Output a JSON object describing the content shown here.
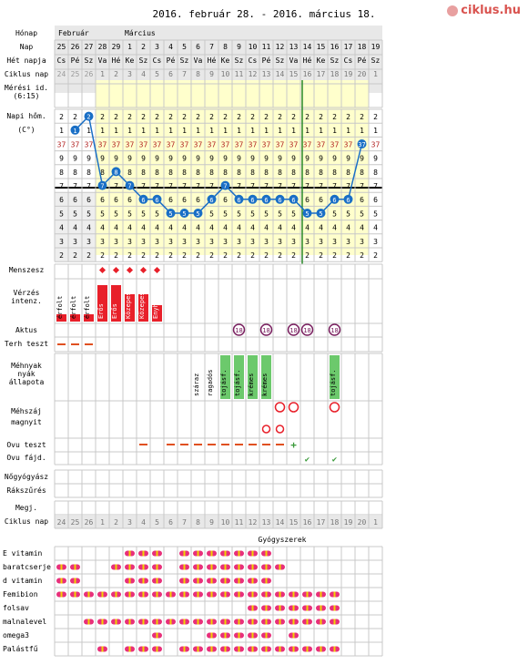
{
  "header": {
    "title": "2016. február 28. - 2016. március 18.",
    "logo": "ciklus.hu"
  },
  "months": {
    "feb": "Február",
    "mar": "Március"
  },
  "labels": {
    "month": "Hónap",
    "day": "Nap",
    "weekday": "Hét napja",
    "cycle_day": "Ciklus nap",
    "measure_time": "Mérési id. (6:15)",
    "temp": "Napi hőm. (C°)",
    "menses": "Menszesz",
    "bleeding": "Vérzés intenz.",
    "sex": "Aktus",
    "preg_test": "Terh teszt",
    "mucus": "Méhnyak nyák állapota",
    "cervix": "Méhszáj magnyit",
    "ovu_test": "Ovu teszt",
    "ovu_pain": "Ovu fájd.",
    "gyno": "Nőgyógyász",
    "rash": "Rákszűrés",
    "note": "Megj.",
    "cycle_day2": "Ciklus nap",
    "meds_title": "Gyógyszerek"
  },
  "days": [
    25,
    26,
    27,
    28,
    29,
    1,
    2,
    3,
    4,
    5,
    6,
    7,
    8,
    9,
    10,
    11,
    12,
    13,
    14,
    15,
    16,
    17,
    18,
    19
  ],
  "weekdays": [
    "Cs",
    "Pé",
    "Sz",
    "Va",
    "Hé",
    "Ke",
    "Sz",
    "Cs",
    "Pé",
    "Sz",
    "Va",
    "Hé",
    "Ke",
    "Sz",
    "Cs",
    "Pé",
    "Sz",
    "Va",
    "Hé",
    "Ke",
    "Sz",
    "Cs",
    "Pé",
    "Sz"
  ],
  "cycle_days": [
    24,
    25,
    26,
    1,
    2,
    3,
    4,
    5,
    6,
    7,
    8,
    9,
    10,
    11,
    12,
    13,
    14,
    15,
    16,
    17,
    18,
    19,
    20,
    1
  ],
  "temp_rows": [
    "2",
    "1",
    "37",
    "9",
    "8",
    "7",
    "6",
    "5",
    "4",
    "3",
    "2"
  ],
  "temp_values": [
    37.1,
    37.2,
    36.7,
    36.8,
    36.7,
    36.6,
    36.6,
    36.5,
    36.5,
    36.5,
    36.6,
    36.7,
    36.6,
    36.6,
    36.6,
    36.6,
    36.6,
    36.5,
    36.5,
    36.6,
    36.6,
    37.0
  ],
  "bleeding": [
    "érfolt",
    "érfolt",
    "érfolt",
    "Erős",
    "Erős",
    "Közepes",
    "Közepes",
    "Enyhe"
  ],
  "mucus": [
    "száraz",
    "ragadós",
    "tojásf.",
    "tojásf.",
    "krémes",
    "krémes",
    "tojásf."
  ],
  "sex_marker": "18",
  "meds": [
    {
      "name": "E vitamin"
    },
    {
      "name": "baratcserje"
    },
    {
      "name": "d vitamin"
    },
    {
      "name": "Femibion"
    },
    {
      "name": "folsav"
    },
    {
      "name": "malnalevel"
    },
    {
      "name": "omega3"
    },
    {
      "name": "Palástfű"
    }
  ],
  "colors": {
    "grid": "#c8c8c8",
    "header_bg": "#e8e8e8",
    "yellow": "#ffffcc",
    "blue": "#1a6fc6",
    "red": "#e8202a",
    "green": "#6cc96c",
    "temp_red": "#b22222",
    "pill_pink": "#e8307a",
    "pill_yellow": "#f2d200",
    "ovu_line": "#2a8a2a",
    "check": "#3a9a3a"
  }
}
